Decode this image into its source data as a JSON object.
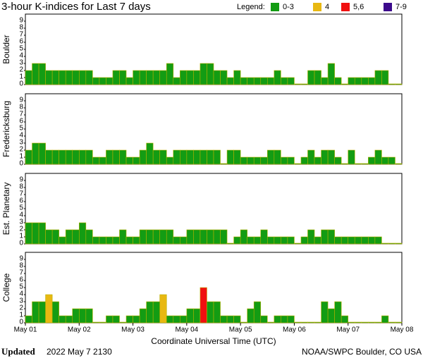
{
  "header": {
    "title": "3-hour K-indices for Last 7 days",
    "legend_title": "Legend:",
    "legend": [
      {
        "label": "0-3",
        "color": "#139c13"
      },
      {
        "label": "4",
        "color": "#e8b812"
      },
      {
        "label": "5,6",
        "color": "#f01010"
      },
      {
        "label": "7-9",
        "color": "#3c0a8c"
      }
    ]
  },
  "x_label": "Coordinate Universal Time (UTC)",
  "footer": {
    "bold": "Updated",
    "date": "2022 May  7 2130",
    "source": "NOAA/SWPC Boulder, CO USA"
  },
  "chart_data": [
    {
      "type": "bar",
      "y_label": "Boulder",
      "xlim": [
        0,
        56
      ],
      "ylim": [
        0,
        10
      ],
      "yticks": [
        0,
        1,
        2,
        3,
        4,
        5,
        6,
        7,
        8,
        9
      ],
      "values": [
        2,
        3,
        3,
        2,
        2,
        2,
        2,
        2,
        2,
        2,
        1,
        1,
        1,
        2,
        2,
        1,
        2,
        2,
        2,
        2,
        2,
        3,
        1,
        2,
        2,
        2,
        3,
        3,
        2,
        2,
        1,
        2,
        1,
        1,
        1,
        1,
        1,
        2,
        1,
        1,
        0,
        0,
        2,
        2,
        1,
        3,
        1,
        0,
        1,
        1,
        1,
        1,
        2,
        2,
        0,
        0
      ]
    },
    {
      "type": "bar",
      "y_label": "Fredericksburg",
      "xlim": [
        0,
        56
      ],
      "ylim": [
        0,
        10
      ],
      "yticks": [
        0,
        1,
        2,
        3,
        4,
        5,
        6,
        7,
        8,
        9
      ],
      "values": [
        2,
        3,
        3,
        2,
        2,
        2,
        2,
        2,
        2,
        2,
        1,
        1,
        2,
        2,
        2,
        1,
        1,
        2,
        3,
        2,
        2,
        1,
        2,
        2,
        2,
        2,
        2,
        2,
        2,
        0,
        2,
        2,
        1,
        1,
        1,
        1,
        2,
        2,
        1,
        1,
        0,
        1,
        2,
        1,
        2,
        2,
        1,
        0,
        2,
        0,
        0,
        1,
        2,
        1,
        1,
        0
      ]
    },
    {
      "type": "bar",
      "y_label": "Est. Planetary",
      "xlim": [
        0,
        56
      ],
      "ylim": [
        0,
        10
      ],
      "yticks": [
        0,
        1,
        2,
        3,
        4,
        5,
        6,
        7,
        8,
        9
      ],
      "values": [
        3,
        3,
        3,
        2,
        2,
        1,
        2,
        2,
        3,
        2,
        1,
        1,
        1,
        1,
        2,
        1,
        1,
        2,
        2,
        2,
        2,
        2,
        1,
        1,
        2,
        2,
        2,
        2,
        2,
        2,
        0,
        1,
        2,
        1,
        1,
        2,
        1,
        1,
        1,
        1,
        0,
        1,
        2,
        1,
        2,
        2,
        1,
        1,
        1,
        1,
        1,
        1,
        1,
        0,
        0,
        0
      ]
    },
    {
      "type": "bar",
      "y_label": "College",
      "xlim": [
        0,
        56
      ],
      "ylim": [
        0,
        10
      ],
      "yticks": [
        0,
        1,
        2,
        3,
        4,
        5,
        6,
        7,
        8,
        9
      ],
      "values": [
        1,
        3,
        3,
        4,
        3,
        1,
        1,
        2,
        2,
        2,
        0,
        0,
        1,
        1,
        0,
        1,
        1,
        2,
        3,
        3,
        4,
        1,
        1,
        1,
        2,
        2,
        5,
        3,
        3,
        1,
        1,
        1,
        0,
        2,
        3,
        1,
        0,
        1,
        1,
        1,
        0,
        0,
        0,
        0,
        3,
        2,
        3,
        1,
        0,
        0,
        0,
        0,
        0,
        1,
        0,
        0
      ],
      "xticks": [
        {
          "value": 0,
          "label": "May 01"
        },
        {
          "value": 8,
          "label": "May 02"
        },
        {
          "value": 16,
          "label": "May 03"
        },
        {
          "value": 24,
          "label": "May 04"
        },
        {
          "value": 32,
          "label": "May 05"
        },
        {
          "value": 40,
          "label": "May 06"
        },
        {
          "value": 48,
          "label": "May 07"
        },
        {
          "value": 56,
          "label": "May 08"
        }
      ]
    }
  ]
}
